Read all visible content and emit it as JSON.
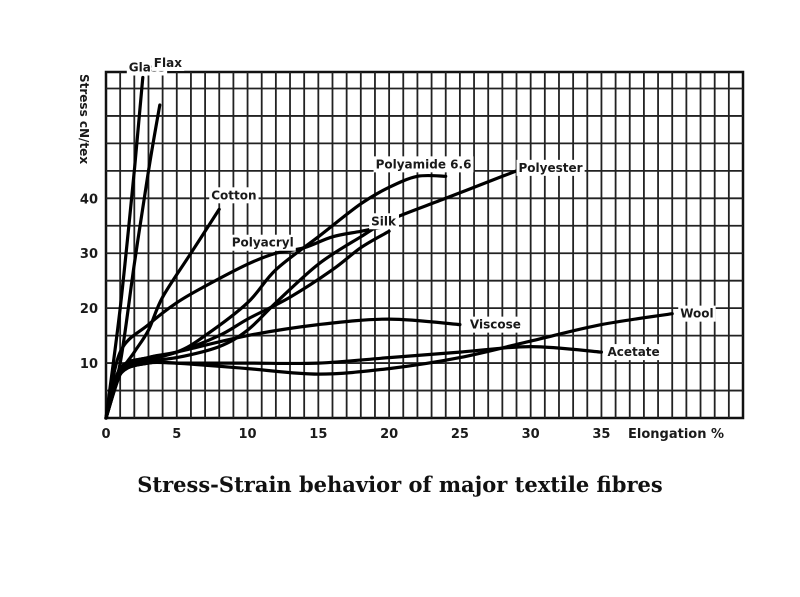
{
  "caption": "Stress-Strain behavior of major textile fibres",
  "chart_data": {
    "type": "line",
    "title": "",
    "xlabel": "Elongation %",
    "ylabel": "Stress cN/tex",
    "xlim": [
      0,
      45
    ],
    "ylim": [
      0,
      63
    ],
    "xticks": [
      0,
      5,
      10,
      15,
      20,
      25,
      30,
      35
    ],
    "yticks": [
      10,
      20,
      30,
      40
    ],
    "grid": true,
    "series": [
      {
        "name": "Glass",
        "x": [
          0,
          1,
          2,
          2.6
        ],
        "y": [
          0,
          20,
          45,
          62
        ]
      },
      {
        "name": "Flax",
        "x": [
          0,
          1,
          2,
          3,
          3.8
        ],
        "y": [
          0,
          10,
          28,
          45,
          57
        ]
      },
      {
        "name": "Cotton",
        "x": [
          0,
          1,
          2,
          3,
          4,
          6,
          8
        ],
        "y": [
          0,
          8,
          12,
          16,
          22,
          30,
          38
        ]
      },
      {
        "name": "Polyacryl",
        "x": [
          0,
          1,
          3,
          5,
          7,
          10,
          12,
          14,
          16,
          18,
          20
        ],
        "y": [
          0,
          12,
          17,
          21,
          24,
          28,
          30,
          31,
          33,
          34,
          35
        ]
      },
      {
        "name": "Polyamide 6.6",
        "x": [
          0,
          1,
          2,
          5,
          7,
          10,
          12,
          15,
          18,
          20,
          22,
          24
        ],
        "y": [
          0,
          8,
          10,
          12,
          15,
          21,
          27,
          33,
          39,
          42,
          44,
          44
        ]
      },
      {
        "name": "Polyester",
        "x": [
          0,
          1,
          2,
          5,
          8,
          10,
          12,
          15,
          18,
          20,
          24,
          28,
          29
        ],
        "y": [
          0,
          8,
          10,
          11,
          13,
          16,
          21,
          28,
          33,
          36,
          40,
          44,
          45
        ]
      },
      {
        "name": "Silk",
        "x": [
          0,
          1,
          3,
          5,
          8,
          10,
          13,
          16,
          18,
          20
        ],
        "y": [
          0,
          9,
          11,
          12,
          15,
          18,
          22,
          27,
          31,
          34
        ]
      },
      {
        "name": "Viscose",
        "x": [
          0,
          1,
          3,
          5,
          10,
          15,
          20,
          25
        ],
        "y": [
          0,
          9,
          11,
          12,
          15,
          17,
          18,
          17
        ]
      },
      {
        "name": "Acetate",
        "x": [
          0,
          1,
          3,
          5,
          10,
          15,
          20,
          25,
          30,
          35
        ],
        "y": [
          0,
          8,
          10,
          10,
          10,
          10,
          11,
          12,
          13,
          12
        ]
      },
      {
        "name": "Wool",
        "x": [
          0,
          1,
          3,
          5,
          10,
          15,
          20,
          25,
          30,
          35,
          40
        ],
        "y": [
          0,
          8,
          10,
          10,
          9,
          8,
          9,
          11,
          14,
          17,
          19
        ]
      }
    ]
  }
}
